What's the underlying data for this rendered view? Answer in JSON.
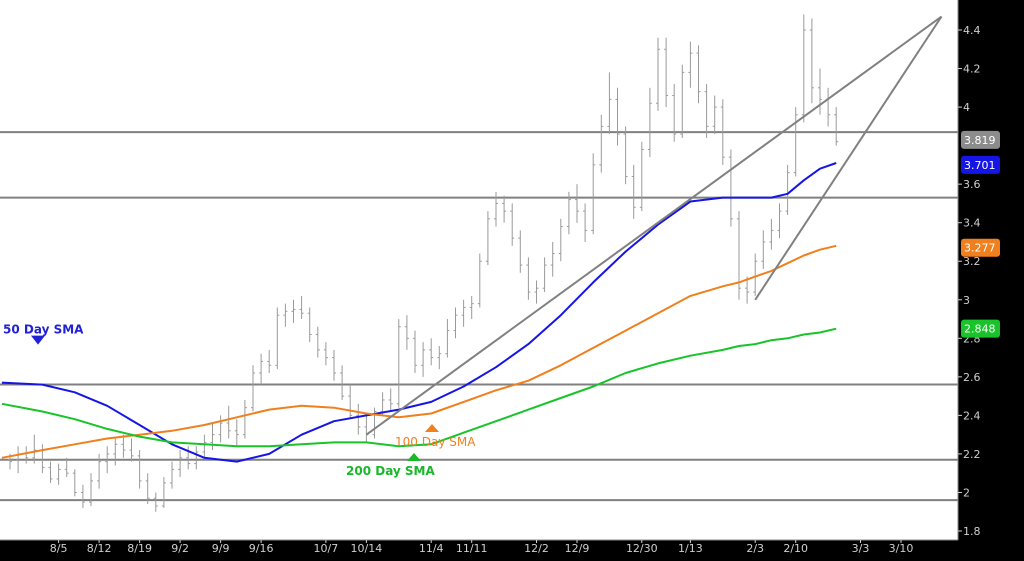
{
  "chart_data": {
    "type": "line",
    "title": "",
    "xlabel": "",
    "ylabel": "",
    "ylim": [
      1.8,
      4.6
    ],
    "y_ticks": [
      1.8,
      2,
      2.2,
      2.4,
      2.6,
      2.8,
      3,
      3.2,
      3.4,
      3.6,
      4,
      4.2,
      4.4
    ],
    "y_tick_labels": [
      "1.8",
      "2",
      "2.2",
      "2.4",
      "2.6",
      "2.8",
      "3",
      "3.2",
      "3.4",
      "3.6",
      "4",
      "4.2",
      "4.4"
    ],
    "x_tick_labels": [
      "8/5",
      "8/12",
      "8/19",
      "9/2",
      "9/9",
      "9/16",
      "10/7",
      "10/14",
      "11/4",
      "11/11",
      "12/2",
      "12/9",
      "12/30",
      "1/13",
      "2/3",
      "2/10",
      "3/3",
      "3/10"
    ],
    "x_tick_index": [
      6,
      11,
      16,
      21,
      26,
      31,
      39,
      44,
      52,
      57,
      65,
      70,
      78,
      84,
      92,
      97,
      105,
      110
    ],
    "bars_count": 103,
    "price_ohlc_approx": [
      [
        2.17,
        2.2,
        2.12,
        2.16
      ],
      [
        2.17,
        2.24,
        2.1,
        2.2
      ],
      [
        2.2,
        2.24,
        2.15,
        2.18
      ],
      [
        2.18,
        2.3,
        2.15,
        2.22
      ],
      [
        2.22,
        2.25,
        2.1,
        2.13
      ],
      [
        2.13,
        2.16,
        2.05,
        2.07
      ],
      [
        2.07,
        2.15,
        2.04,
        2.12
      ],
      [
        2.12,
        2.18,
        2.08,
        2.1
      ],
      [
        2.1,
        2.12,
        1.98,
        2.0
      ],
      [
        2.0,
        2.04,
        1.92,
        1.95
      ],
      [
        1.95,
        2.1,
        1.93,
        2.06
      ],
      [
        2.06,
        2.2,
        2.02,
        2.16
      ],
      [
        2.16,
        2.24,
        2.1,
        2.2
      ],
      [
        2.2,
        2.28,
        2.14,
        2.25
      ],
      [
        2.25,
        2.3,
        2.18,
        2.22
      ],
      [
        2.22,
        2.28,
        2.16,
        2.19
      ],
      [
        2.19,
        2.22,
        2.02,
        2.06
      ],
      [
        2.06,
        2.1,
        1.94,
        1.97
      ],
      [
        1.97,
        2.0,
        1.9,
        1.93
      ],
      [
        1.93,
        2.08,
        1.92,
        2.05
      ],
      [
        2.05,
        2.16,
        2.02,
        2.12
      ],
      [
        2.12,
        2.22,
        2.08,
        2.18
      ],
      [
        2.18,
        2.24,
        2.12,
        2.15
      ],
      [
        2.15,
        2.24,
        2.12,
        2.21
      ],
      [
        2.21,
        2.3,
        2.18,
        2.26
      ],
      [
        2.26,
        2.36,
        2.22,
        2.3
      ],
      [
        2.3,
        2.4,
        2.26,
        2.36
      ],
      [
        2.36,
        2.45,
        2.28,
        2.32
      ],
      [
        2.32,
        2.38,
        2.24,
        2.3
      ],
      [
        2.3,
        2.48,
        2.28,
        2.44
      ],
      [
        2.44,
        2.66,
        2.42,
        2.62
      ],
      [
        2.62,
        2.72,
        2.56,
        2.68
      ],
      [
        2.68,
        2.74,
        2.62,
        2.66
      ],
      [
        2.66,
        2.96,
        2.64,
        2.92
      ],
      [
        2.92,
        2.98,
        2.86,
        2.94
      ],
      [
        2.94,
        3.0,
        2.88,
        2.95
      ],
      [
        2.95,
        3.02,
        2.9,
        2.93
      ],
      [
        2.93,
        2.96,
        2.78,
        2.82
      ],
      [
        2.82,
        2.86,
        2.7,
        2.74
      ],
      [
        2.74,
        2.78,
        2.66,
        2.7
      ],
      [
        2.7,
        2.74,
        2.58,
        2.62
      ],
      [
        2.62,
        2.66,
        2.48,
        2.5
      ],
      [
        2.5,
        2.56,
        2.38,
        2.4
      ],
      [
        2.4,
        2.46,
        2.3,
        2.34
      ],
      [
        2.34,
        2.4,
        2.26,
        2.3
      ],
      [
        2.3,
        2.44,
        2.28,
        2.42
      ],
      [
        2.42,
        2.52,
        2.4,
        2.48
      ],
      [
        2.48,
        2.54,
        2.42,
        2.46
      ],
      [
        2.46,
        2.9,
        2.44,
        2.86
      ],
      [
        2.86,
        2.92,
        2.74,
        2.8
      ],
      [
        2.8,
        2.84,
        2.62,
        2.66
      ],
      [
        2.66,
        2.78,
        2.6,
        2.74
      ],
      [
        2.74,
        2.8,
        2.66,
        2.7
      ],
      [
        2.7,
        2.76,
        2.64,
        2.72
      ],
      [
        2.72,
        2.9,
        2.7,
        2.84
      ],
      [
        2.84,
        2.96,
        2.8,
        2.92
      ],
      [
        2.92,
        3.0,
        2.86,
        2.96
      ],
      [
        2.96,
        3.02,
        2.9,
        2.98
      ],
      [
        2.98,
        3.24,
        2.96,
        3.2
      ],
      [
        3.2,
        3.46,
        3.18,
        3.42
      ],
      [
        3.42,
        3.56,
        3.38,
        3.5
      ],
      [
        3.5,
        3.54,
        3.4,
        3.46
      ],
      [
        3.46,
        3.5,
        3.28,
        3.32
      ],
      [
        3.32,
        3.36,
        3.14,
        3.18
      ],
      [
        3.18,
        3.22,
        3.0,
        3.04
      ],
      [
        3.04,
        3.1,
        2.98,
        3.06
      ],
      [
        3.06,
        3.22,
        3.04,
        3.18
      ],
      [
        3.18,
        3.3,
        3.12,
        3.24
      ],
      [
        3.24,
        3.42,
        3.2,
        3.38
      ],
      [
        3.38,
        3.56,
        3.34,
        3.52
      ],
      [
        3.52,
        3.6,
        3.4,
        3.46
      ],
      [
        3.46,
        3.5,
        3.3,
        3.36
      ],
      [
        3.36,
        3.76,
        3.34,
        3.7
      ],
      [
        3.7,
        3.96,
        3.66,
        3.9
      ],
      [
        3.9,
        4.18,
        3.86,
        4.04
      ],
      [
        4.04,
        4.1,
        3.8,
        3.86
      ],
      [
        3.86,
        3.9,
        3.6,
        3.64
      ],
      [
        3.64,
        3.7,
        3.42,
        3.48
      ],
      [
        3.48,
        3.82,
        3.46,
        3.78
      ],
      [
        3.78,
        4.1,
        3.74,
        4.02
      ],
      [
        4.02,
        4.36,
        3.98,
        4.3
      ],
      [
        4.3,
        4.36,
        4.0,
        4.06
      ],
      [
        4.06,
        4.12,
        3.82,
        3.86
      ],
      [
        3.86,
        4.22,
        3.84,
        4.18
      ],
      [
        4.18,
        4.34,
        4.1,
        4.28
      ],
      [
        4.28,
        4.32,
        4.02,
        4.08
      ],
      [
        4.08,
        4.12,
        3.84,
        3.9
      ],
      [
        3.9,
        4.06,
        3.86,
        4.0
      ],
      [
        4.0,
        4.04,
        3.7,
        3.74
      ],
      [
        3.74,
        3.78,
        3.38,
        3.42
      ],
      [
        3.42,
        3.46,
        3.0,
        3.06
      ],
      [
        3.06,
        3.12,
        2.98,
        3.04
      ],
      [
        3.04,
        3.24,
        3.02,
        3.2
      ],
      [
        3.2,
        3.36,
        3.16,
        3.3
      ],
      [
        3.3,
        3.42,
        3.26,
        3.36
      ],
      [
        3.36,
        3.5,
        3.32,
        3.46
      ],
      [
        3.46,
        3.7,
        3.44,
        3.66
      ],
      [
        3.66,
        4.0,
        3.64,
        3.96
      ],
      [
        3.96,
        4.48,
        3.92,
        4.4
      ],
      [
        4.4,
        4.46,
        4.02,
        4.1
      ],
      [
        4.1,
        4.2,
        3.96,
        4.04
      ],
      [
        4.04,
        4.1,
        3.9,
        3.96
      ],
      [
        3.96,
        4.0,
        3.8,
        3.82
      ]
    ],
    "series": [
      {
        "name": "50 Day SMA",
        "color": "#1515e6",
        "x": [
          -1,
          4,
          8,
          12,
          16,
          20,
          24,
          28,
          32,
          36,
          40,
          44,
          48,
          52,
          56,
          60,
          64,
          68,
          72,
          76,
          80,
          84,
          88,
          90,
          92,
          94,
          96,
          98,
          100,
          102
        ],
        "values": [
          2.57,
          2.56,
          2.52,
          2.45,
          2.35,
          2.25,
          2.18,
          2.16,
          2.2,
          2.3,
          2.37,
          2.4,
          2.43,
          2.47,
          2.55,
          2.65,
          2.77,
          2.92,
          3.09,
          3.25,
          3.39,
          3.51,
          3.53,
          3.53,
          3.53,
          3.53,
          3.55,
          3.62,
          3.68,
          3.71
        ]
      },
      {
        "name": "100 Day SMA",
        "color": "#f07f1e",
        "x": [
          -1,
          4,
          8,
          12,
          16,
          20,
          24,
          28,
          32,
          36,
          40,
          44,
          48,
          52,
          56,
          60,
          64,
          68,
          72,
          76,
          80,
          84,
          88,
          90,
          92,
          94,
          96,
          98,
          100,
          102
        ],
        "values": [
          2.18,
          2.22,
          2.25,
          2.28,
          2.3,
          2.32,
          2.35,
          2.39,
          2.43,
          2.45,
          2.44,
          2.41,
          2.39,
          2.41,
          2.47,
          2.53,
          2.58,
          2.66,
          2.75,
          2.84,
          2.93,
          3.02,
          3.07,
          3.09,
          3.12,
          3.15,
          3.19,
          3.23,
          3.26,
          3.28
        ]
      },
      {
        "name": "200 Day SMA",
        "color": "#18c42a",
        "x": [
          -1,
          4,
          8,
          12,
          16,
          20,
          24,
          28,
          32,
          36,
          40,
          44,
          48,
          52,
          56,
          60,
          64,
          68,
          72,
          76,
          80,
          84,
          88,
          90,
          92,
          94,
          96,
          98,
          100,
          102
        ],
        "values": [
          2.46,
          2.42,
          2.38,
          2.33,
          2.29,
          2.26,
          2.25,
          2.24,
          2.24,
          2.25,
          2.26,
          2.26,
          2.24,
          2.25,
          2.31,
          2.37,
          2.43,
          2.49,
          2.55,
          2.62,
          2.67,
          2.71,
          2.74,
          2.76,
          2.77,
          2.79,
          2.8,
          2.82,
          2.83,
          2.85
        ]
      }
    ],
    "horizontal_lines": [
      3.87,
      3.53,
      2.56,
      2.17,
      1.96
    ],
    "trendlines": [
      {
        "x": [
          44,
          115
        ],
        "y": [
          2.3,
          4.47
        ]
      },
      {
        "x": [
          92,
          115
        ],
        "y": [
          3.0,
          4.47
        ]
      }
    ],
    "price_labels": [
      {
        "value": "3.819",
        "y": 3.83,
        "color": "#8c8c8c"
      },
      {
        "value": "3.701",
        "y": 3.7,
        "color": "#1515e6"
      },
      {
        "value": "3.277",
        "y": 3.27,
        "color": "#f07f1e"
      },
      {
        "value": "2.848",
        "y": 2.85,
        "color": "#18c42a"
      }
    ],
    "annotations": [
      {
        "text": "50 Day SMA",
        "x": -1,
        "y": 2.85,
        "color": "#2121d6",
        "marker": "down"
      },
      {
        "text": "100 Day SMA",
        "x": 45.5,
        "y": 2.25,
        "color": "#f07f1e",
        "marker": "up"
      },
      {
        "text": "200 Day SMA",
        "x": 40,
        "y": 2.14,
        "color": "#18b82a",
        "marker": "up"
      }
    ]
  }
}
